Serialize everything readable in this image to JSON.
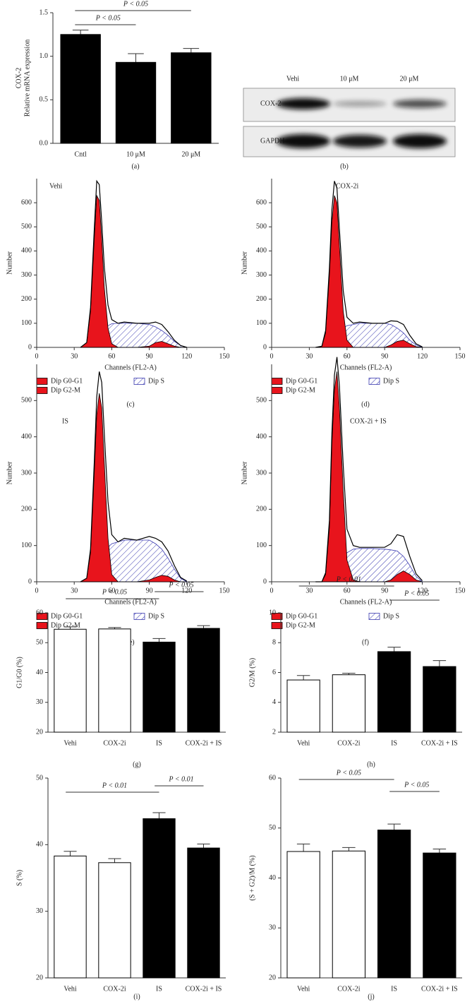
{
  "chart_data": [
    {
      "type": "bar",
      "caption": "(a)",
      "y_label": [
        "COX-2",
        "Relative mRNA expression"
      ],
      "categories": [
        "Cntl",
        "10 μM",
        "20 μM"
      ],
      "values": [
        1.25,
        0.93,
        1.04
      ],
      "errors": [
        0.05,
        0.1,
        0.05
      ],
      "colors": [
        "#000000",
        "#000000",
        "#000000"
      ],
      "ylim": [
        0,
        1.5
      ],
      "yticks": [
        {
          "value": 0,
          "label": "0.0"
        },
        0.5,
        {
          "value": 1,
          "label": "1.0"
        },
        1.5
      ],
      "annotations": [
        "P < 0.05",
        "P < 0.05"
      ]
    },
    {
      "type": "blot",
      "caption": "(b)",
      "columns": [
        "Vehi",
        "10 μM",
        "20 μM"
      ],
      "rows": [
        "COX-2",
        "GAPDH"
      ]
    },
    {
      "type": "area",
      "title": "Vehi",
      "caption": "(c)",
      "x_label": "Channels (FL2-A)",
      "y_label": "Number",
      "x": [
        35,
        40,
        43,
        46,
        48,
        50,
        52,
        54,
        57,
        60,
        65,
        70,
        80,
        90,
        95,
        100,
        105,
        110,
        115,
        120
      ],
      "series": [
        {
          "name": "Dip G0-G1",
          "color": "#e8141c",
          "values": [
            0,
            20,
            150,
            450,
            630,
            610,
            450,
            250,
            80,
            15,
            0,
            0,
            0,
            0,
            0,
            0,
            0,
            0,
            0,
            0
          ]
        },
        {
          "name": "Dip G2-M",
          "color": "#e8141c",
          "values": [
            0,
            0,
            0,
            0,
            0,
            0,
            0,
            0,
            0,
            0,
            0,
            0,
            0,
            5,
            20,
            25,
            15,
            5,
            0,
            0
          ]
        },
        {
          "name": "Dip S",
          "color": "#3a3ab0",
          "pattern": "hatch",
          "values": [
            0,
            0,
            10,
            30,
            50,
            60,
            70,
            80,
            90,
            98,
            100,
            100,
            100,
            95,
            85,
            70,
            50,
            25,
            8,
            0
          ]
        },
        {
          "color": "#000000",
          "values": [
            0,
            20,
            165,
            490,
            690,
            675,
            520,
            335,
            175,
            115,
            100,
            105,
            100,
            100,
            105,
            95,
            65,
            30,
            8,
            0
          ]
        }
      ],
      "xlim": [
        0,
        150
      ],
      "xticks": [
        0,
        30,
        60,
        90,
        120,
        150
      ],
      "ylim": [
        0,
        700
      ],
      "yticks": [
        0,
        100,
        200,
        300,
        400,
        500,
        600
      ]
    },
    {
      "type": "area",
      "title": "COX-2i",
      "caption": "(d)",
      "x_label": "Channels (FL2-A)",
      "y_label": "Number",
      "x": [
        35,
        40,
        43,
        46,
        48,
        50,
        52,
        54,
        57,
        60,
        65,
        70,
        80,
        90,
        95,
        100,
        105,
        110,
        115,
        120
      ],
      "series": [
        {
          "name": "Dip G0-G1",
          "color": "#e8141c",
          "values": [
            0,
            5,
            60,
            300,
            520,
            630,
            600,
            420,
            150,
            30,
            0,
            0,
            0,
            0,
            0,
            0,
            0,
            0,
            0,
            0
          ]
        },
        {
          "name": "Dip G2-M",
          "color": "#e8141c",
          "values": [
            0,
            0,
            0,
            0,
            0,
            0,
            0,
            0,
            0,
            0,
            0,
            0,
            0,
            0,
            10,
            25,
            30,
            15,
            3,
            0
          ]
        },
        {
          "name": "Dip S",
          "color": "#3a3ab0",
          "pattern": "hatch",
          "values": [
            0,
            0,
            5,
            20,
            35,
            45,
            55,
            65,
            80,
            90,
            95,
            100,
            100,
            100,
            95,
            80,
            60,
            30,
            10,
            0
          ]
        },
        {
          "color": "#000000",
          "values": [
            0,
            5,
            70,
            330,
            570,
            690,
            660,
            490,
            235,
            125,
            100,
            105,
            100,
            100,
            110,
            108,
            95,
            50,
            15,
            2
          ]
        }
      ],
      "xlim": [
        0,
        150
      ],
      "xticks": [
        0,
        30,
        60,
        90,
        120,
        150
      ],
      "ylim": [
        0,
        700
      ],
      "yticks": [
        0,
        100,
        200,
        300,
        400,
        500,
        600
      ]
    },
    {
      "type": "area",
      "title": "IS",
      "caption": "(e)",
      "x_label": "Channels (FL2-A)",
      "y_label": "Number",
      "x": [
        35,
        40,
        43,
        46,
        48,
        50,
        52,
        54,
        57,
        60,
        65,
        70,
        80,
        90,
        95,
        100,
        105,
        110,
        115,
        120
      ],
      "series": [
        {
          "name": "Dip G0-G1",
          "color": "#e8141c",
          "values": [
            0,
            10,
            80,
            300,
            460,
            520,
            480,
            330,
            120,
            20,
            0,
            0,
            0,
            0,
            0,
            0,
            0,
            0,
            0,
            0
          ]
        },
        {
          "name": "Dip G2-M",
          "color": "#e8141c",
          "values": [
            0,
            0,
            0,
            0,
            0,
            0,
            0,
            0,
            0,
            0,
            0,
            0,
            0,
            5,
            12,
            18,
            15,
            5,
            0,
            0
          ]
        },
        {
          "name": "Dip S",
          "color": "#3a3ab0",
          "pattern": "hatch",
          "values": [
            0,
            0,
            5,
            20,
            35,
            45,
            60,
            75,
            95,
            105,
            110,
            115,
            115,
            115,
            105,
            90,
            65,
            35,
            10,
            0
          ]
        },
        {
          "color": "#000000",
          "values": [
            0,
            10,
            90,
            330,
            510,
            580,
            550,
            410,
            220,
            130,
            110,
            120,
            115,
            125,
            120,
            110,
            85,
            45,
            12,
            2
          ]
        }
      ],
      "xlim": [
        0,
        150
      ],
      "xticks": [
        0,
        30,
        60,
        90,
        120,
        150
      ],
      "ylim": [
        0,
        600
      ],
      "yticks": [
        0,
        100,
        200,
        300,
        400,
        500
      ]
    },
    {
      "type": "area",
      "title": "COX-2i + IS",
      "caption": "(f)",
      "x_label": "Channels (FL2-A)",
      "y_label": "Number",
      "x": [
        35,
        40,
        43,
        46,
        48,
        50,
        52,
        54,
        57,
        60,
        65,
        70,
        80,
        90,
        95,
        100,
        105,
        110,
        115,
        120
      ],
      "series": [
        {
          "name": "Dip G0-G1",
          "color": "#e8141c",
          "values": [
            0,
            0,
            20,
            150,
            380,
            530,
            580,
            480,
            250,
            60,
            5,
            0,
            0,
            0,
            0,
            0,
            0,
            0,
            0,
            0
          ]
        },
        {
          "name": "Dip G2-M",
          "color": "#e8141c",
          "values": [
            0,
            0,
            0,
            0,
            0,
            0,
            0,
            0,
            0,
            0,
            0,
            0,
            0,
            0,
            5,
            20,
            30,
            20,
            5,
            0
          ]
        },
        {
          "name": "Dip S",
          "color": "#3a3ab0",
          "pattern": "hatch",
          "values": [
            0,
            0,
            0,
            10,
            20,
            30,
            40,
            50,
            65,
            80,
            90,
            92,
            92,
            90,
            88,
            85,
            70,
            45,
            15,
            0
          ]
        },
        {
          "color": "#000000",
          "values": [
            0,
            0,
            25,
            170,
            410,
            570,
            620,
            540,
            320,
            145,
            100,
            95,
            95,
            95,
            105,
            130,
            125,
            70,
            22,
            3
          ]
        }
      ],
      "xlim": [
        0,
        150
      ],
      "xticks": [
        0,
        30,
        60,
        90,
        120,
        150
      ],
      "ylim": [
        0,
        600
      ],
      "yticks": [
        0,
        100,
        200,
        300,
        400,
        500
      ]
    },
    {
      "type": "bar",
      "caption": "(g)",
      "y_label": [
        "G1/G0 (%)"
      ],
      "categories": [
        "Vehi",
        "COX-2i",
        "IS",
        "COX-2i + IS"
      ],
      "values": [
        54.5,
        54.6,
        50.2,
        54.8
      ],
      "errors": [
        0.8,
        0.5,
        1.2,
        0.9
      ],
      "colors": [
        "#ffffff",
        "#ffffff",
        "#000000",
        "#000000"
      ],
      "ylim": [
        20,
        60
      ],
      "yticks": [
        20,
        30,
        40,
        50,
        60
      ],
      "annotations": [
        "P < 0.05",
        "P < 0.05"
      ]
    },
    {
      "type": "bar",
      "caption": "(h)",
      "y_label": [
        "G2/M (%)"
      ],
      "categories": [
        "Vehi",
        "COX-2i",
        "IS",
        "COX-2i + IS"
      ],
      "values": [
        5.5,
        5.85,
        7.4,
        6.4
      ],
      "errors": [
        0.3,
        0.1,
        0.3,
        0.4
      ],
      "colors": [
        "#ffffff",
        "#ffffff",
        "#000000",
        "#000000"
      ],
      "ylim": [
        2,
        10
      ],
      "yticks": [
        2,
        4,
        6,
        8,
        10
      ],
      "annotations": [
        "P < 0.01",
        "P < 0.05"
      ]
    },
    {
      "type": "bar",
      "caption": "(i)",
      "y_label": [
        "S (%)"
      ],
      "categories": [
        "Vehi",
        "COX-2i",
        "IS",
        "COX-2i + IS"
      ],
      "values": [
        38.3,
        37.3,
        43.9,
        39.5
      ],
      "errors": [
        0.7,
        0.6,
        0.9,
        0.6
      ],
      "colors": [
        "#ffffff",
        "#ffffff",
        "#000000",
        "#000000"
      ],
      "ylim": [
        20,
        50
      ],
      "yticks": [
        20,
        30,
        40,
        50
      ],
      "annotations": [
        "P < 0.01",
        "P < 0.01"
      ]
    },
    {
      "type": "bar",
      "caption": "(j)",
      "y_label": [
        "(S + G2)/M (%)"
      ],
      "categories": [
        "Vehi",
        "COX-2i",
        "IS",
        "COX-2i + IS"
      ],
      "values": [
        45.3,
        45.4,
        49.6,
        45.0
      ],
      "errors": [
        1.5,
        0.7,
        1.2,
        0.8
      ],
      "colors": [
        "#ffffff",
        "#ffffff",
        "#000000",
        "#000000"
      ],
      "ylim": [
        20,
        60
      ],
      "yticks": [
        20,
        30,
        40,
        50,
        60
      ],
      "annotations": [
        "P < 0.05",
        "P < 0.05"
      ]
    }
  ]
}
